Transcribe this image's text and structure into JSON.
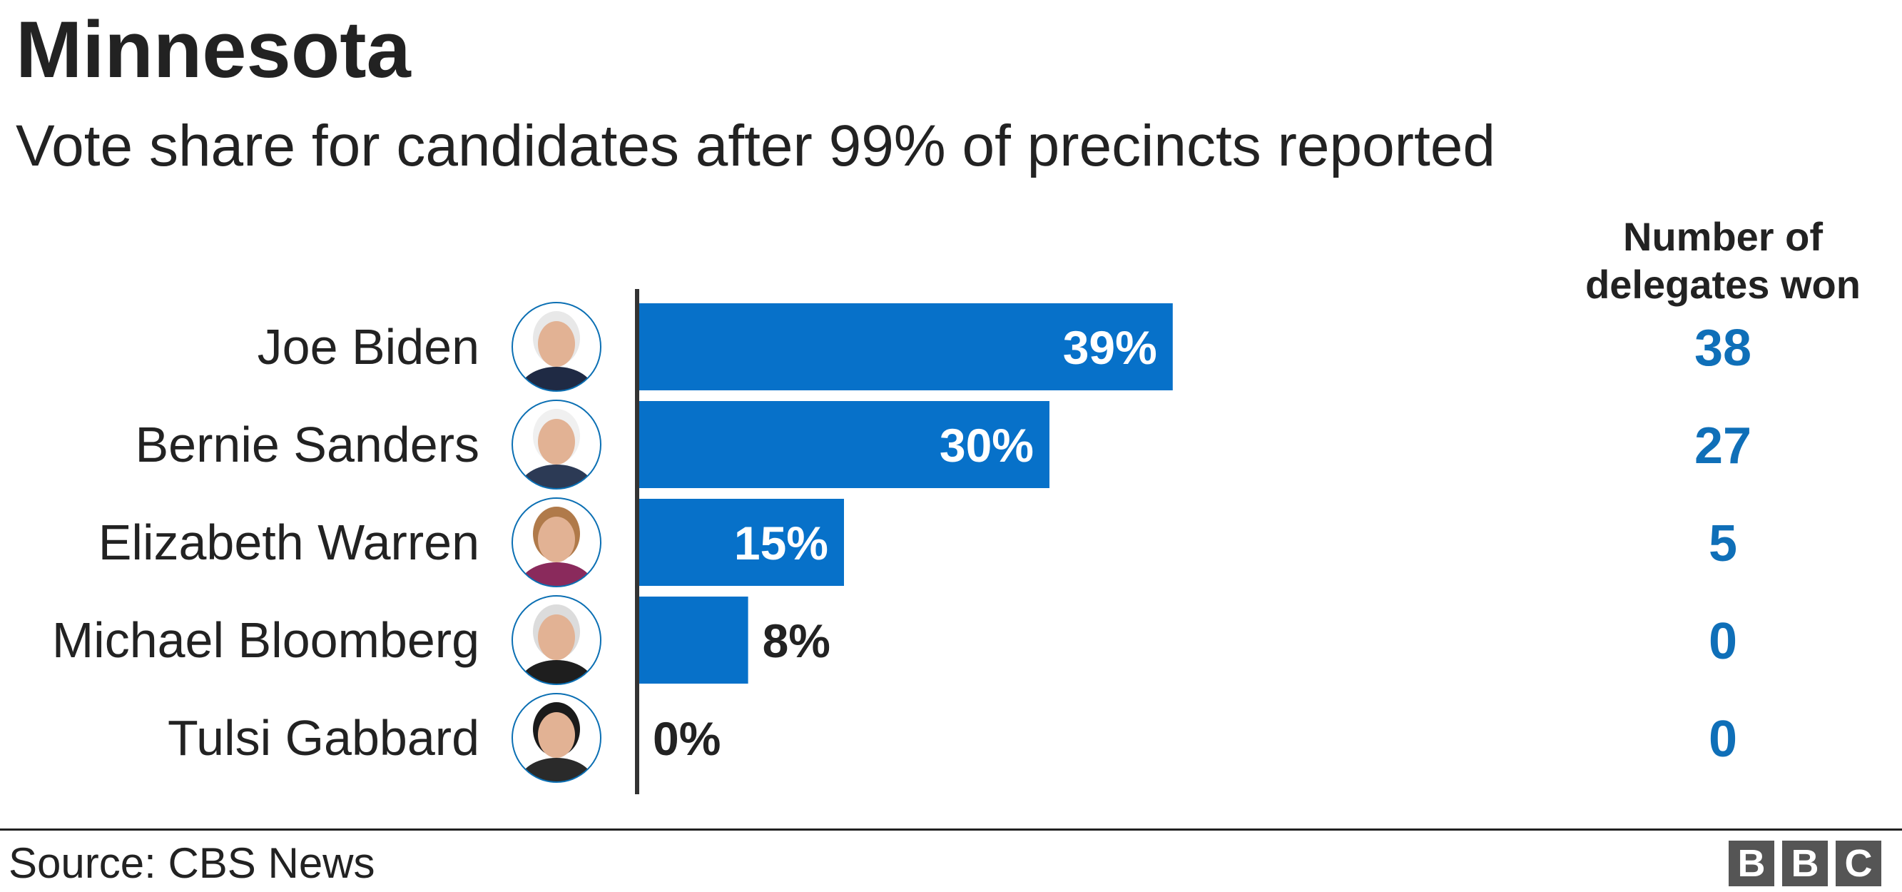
{
  "title": "Minnesota",
  "subtitle": "Vote share for candidates after 99% of precincts reported",
  "delegates_header": "Number of delegates won",
  "source": "Source: CBS News",
  "logo": [
    "B",
    "B",
    "C"
  ],
  "colors": {
    "bar": "#0771c9",
    "delegates": "#0f6fb8",
    "text": "#222222",
    "axis": "#333333"
  },
  "chart_data": {
    "type": "bar",
    "orientation": "horizontal",
    "categories": [
      "Joe Biden",
      "Bernie Sanders",
      "Elizabeth Warren",
      "Michael Bloomberg",
      "Tulsi Gabbard"
    ],
    "values": [
      39,
      30,
      15,
      8,
      0
    ],
    "value_labels": [
      "39%",
      "30%",
      "15%",
      "8%",
      "0%"
    ],
    "delegates": [
      38,
      27,
      5,
      0,
      0
    ],
    "unit": "%",
    "xlim": [
      0,
      100
    ],
    "grid": false,
    "portraits": [
      "portrait-icon",
      "portrait-icon",
      "portrait-icon",
      "portrait-icon",
      "portrait-icon"
    ]
  }
}
